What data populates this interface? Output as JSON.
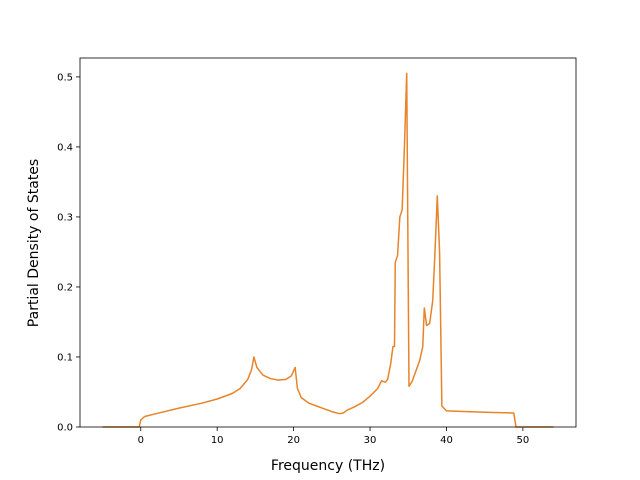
{
  "chart_data": {
    "type": "line",
    "xlabel": "Frequency (THz)",
    "ylabel": "Partial Density of States",
    "x": [
      -5,
      -0.2,
      0,
      0.5,
      2,
      5,
      8,
      10,
      12,
      13,
      14,
      14.5,
      14.8,
      15.2,
      16,
      17,
      18,
      19,
      19.7,
      20.2,
      20.5,
      21,
      22,
      23,
      24,
      25,
      26,
      26.5,
      27,
      28,
      29,
      30,
      31,
      31.5,
      32,
      32.3,
      32.7,
      33,
      33.2,
      33.3,
      33.6,
      33.9,
      34.2,
      34.5,
      34.8,
      35,
      35.1,
      35.5,
      36,
      36.5,
      36.9,
      37.1,
      37.4,
      37.8,
      38.2,
      38.5,
      38.8,
      39.1,
      39.4,
      40,
      45,
      48.8,
      49.1,
      54
    ],
    "series": [
      {
        "color": "#e8832a",
        "values": [
          0,
          0,
          0.01,
          0.015,
          0.019,
          0.027,
          0.034,
          0.04,
          0.048,
          0.055,
          0.068,
          0.082,
          0.1,
          0.085,
          0.074,
          0.069,
          0.067,
          0.068,
          0.073,
          0.085,
          0.055,
          0.042,
          0.034,
          0.03,
          0.026,
          0.022,
          0.019,
          0.02,
          0.024,
          0.029,
          0.035,
          0.044,
          0.055,
          0.066,
          0.064,
          0.068,
          0.09,
          0.115,
          0.115,
          0.235,
          0.245,
          0.3,
          0.31,
          0.4,
          0.505,
          0.2,
          0.058,
          0.065,
          0.08,
          0.095,
          0.115,
          0.17,
          0.145,
          0.148,
          0.18,
          0.25,
          0.33,
          0.25,
          0.03,
          0.023,
          0.021,
          0.02,
          0,
          0
        ]
      }
    ],
    "xlim": [
      -7.95,
      56.95
    ],
    "xticks": [
      0,
      10,
      20,
      30,
      40,
      50
    ],
    "ylim": [
      0,
      0.527
    ],
    "yticks": [
      {
        "value": 0,
        "label": "0.0"
      },
      0.1,
      0.2,
      0.3,
      0.4,
      0.5
    ],
    "grid": false
  }
}
